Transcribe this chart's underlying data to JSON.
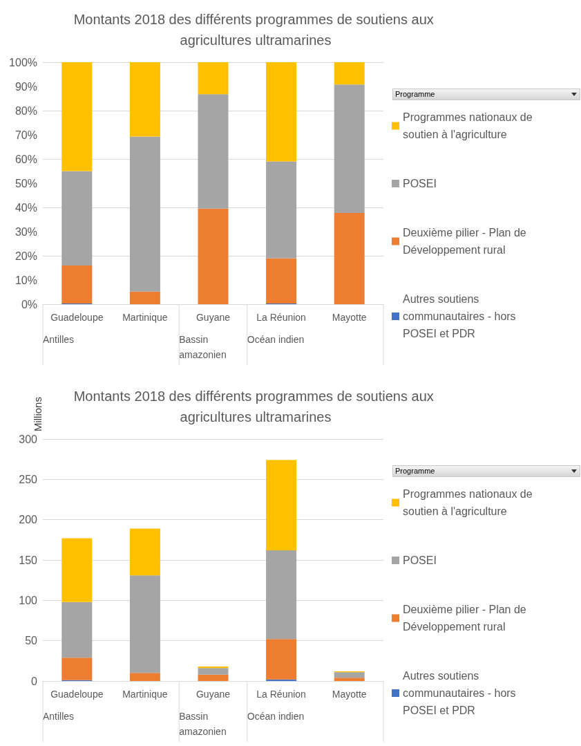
{
  "chart_data": [
    {
      "type": "bar",
      "title": "Montants 2018 des différents programmes de soutiens aux agricultures ultramarines",
      "categories": [
        "Guadeloupe",
        "Martinique",
        "Guyane",
        "La Réunion",
        "Mayotte"
      ],
      "stacked": true,
      "legend_title": "Programme",
      "legend": "right",
      "grid": "y",
      "ylim": [
        0,
        100
      ],
      "yticks": [
        {
          "value": 0,
          "label": "0%"
        },
        {
          "value": 10,
          "label": "10%"
        },
        {
          "value": 20,
          "label": "20%"
        },
        {
          "value": 30,
          "label": "30%"
        },
        {
          "value": 40,
          "label": "40%"
        },
        {
          "value": 50,
          "label": "50%"
        },
        {
          "value": 60,
          "label": "60%"
        },
        {
          "value": 70,
          "label": "70%"
        },
        {
          "value": 80,
          "label": "80%"
        },
        {
          "value": 90,
          "label": "90%"
        },
        {
          "value": 100,
          "label": "100%"
        }
      ],
      "annotations": [
        "Antilles",
        "Bassin amazonien",
        "Océan indien"
      ],
      "series": [
        {
          "name": "Autres soutiens communautaires - hors POSEI et PDR",
          "color": "#4472c4",
          "values": [
            0.3,
            0,
            0,
            0.3,
            0
          ]
        },
        {
          "name": "Deuxième pilier - Plan de Développement rural",
          "color": "#ed7d31",
          "values": [
            15.7,
            5.2,
            39.5,
            18.7,
            37.7
          ]
        },
        {
          "name": "POSEI",
          "color": "#a5a5a5",
          "values": [
            39,
            64.1,
            47.3,
            40,
            53.1
          ]
        },
        {
          "name": "Programmes nationaux de soutien à l'agriculture",
          "color": "#ffc000",
          "values": [
            45,
            30.7,
            13.2,
            41,
            9.2
          ]
        }
      ]
    },
    {
      "type": "bar",
      "title": "Montants 2018 des différents programmes de soutiens aux agricultures ultramarines",
      "ylabel": "Millions",
      "categories": [
        "Guadeloupe",
        "Martinique",
        "Guyane",
        "La Réunion",
        "Mayotte"
      ],
      "stacked": true,
      "legend_title": "Programme",
      "legend": "right",
      "grid": "y",
      "ylim": [
        0,
        300
      ],
      "yticks": [
        0,
        50,
        100,
        150,
        200,
        250,
        300
      ],
      "annotations": [
        "Antilles",
        "Bassin amazonien",
        "Océan indien"
      ],
      "series": [
        {
          "name": "Autres soutiens communautaires - hors POSEI et PDR",
          "color": "#4472c4",
          "values": [
            1,
            0,
            0,
            2,
            0
          ]
        },
        {
          "name": "Deuxième pilier - Plan de Développement rural",
          "color": "#ed7d31",
          "values": [
            28,
            10,
            8,
            50,
            4
          ]
        },
        {
          "name": "POSEI",
          "color": "#a5a5a5",
          "values": [
            69,
            121,
            8,
            110,
            7
          ]
        },
        {
          "name": "Programmes nationaux de soutien à l'agriculture",
          "color": "#ffc000",
          "values": [
            79,
            58,
            2,
            112,
            1
          ]
        }
      ]
    }
  ]
}
